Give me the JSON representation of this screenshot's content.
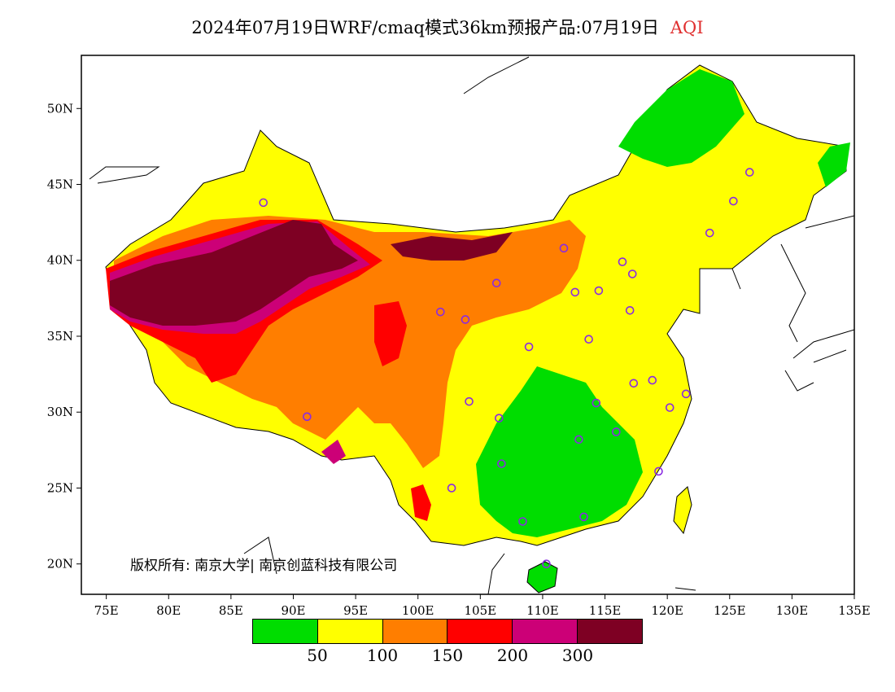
{
  "title": {
    "main": "2024年07月19日WRF/cmaq模式36km预报产品:07月19日",
    "variable": "AQI",
    "variable_color": "#e03030"
  },
  "axes": {
    "lon_ticks": [
      "75E",
      "80E",
      "85E",
      "90E",
      "95E",
      "100E",
      "105E",
      "110E",
      "115E",
      "120E",
      "125E",
      "130E",
      "135E"
    ],
    "lat_ticks": [
      "20N",
      "25N",
      "30N",
      "35N",
      "40N",
      "45N",
      "50N"
    ],
    "lon_range": [
      73,
      135
    ],
    "lat_range": [
      18,
      53.5
    ]
  },
  "copyright": "版权所有: 南京大学| 南京创蓝科技有限公司",
  "legend": {
    "colors": [
      "#00dd00",
      "#ffff00",
      "#ff7e00",
      "#ff0000",
      "#cc0077",
      "#7e0023"
    ],
    "labels": [
      "50",
      "100",
      "150",
      "200",
      "300"
    ]
  },
  "stations": [
    {
      "lon": 87.6,
      "lat": 43.8
    },
    {
      "lon": 91.1,
      "lat": 29.7
    },
    {
      "lon": 101.8,
      "lat": 36.6
    },
    {
      "lon": 103.8,
      "lat": 36.1
    },
    {
      "lon": 106.3,
      "lat": 38.5
    },
    {
      "lon": 111.7,
      "lat": 40.8
    },
    {
      "lon": 112.6,
      "lat": 37.9
    },
    {
      "lon": 114.5,
      "lat": 38.0
    },
    {
      "lon": 116.4,
      "lat": 39.9
    },
    {
      "lon": 117.2,
      "lat": 39.1
    },
    {
      "lon": 117.0,
      "lat": 36.7
    },
    {
      "lon": 113.7,
      "lat": 34.8
    },
    {
      "lon": 108.9,
      "lat": 34.3
    },
    {
      "lon": 104.1,
      "lat": 30.7
    },
    {
      "lon": 106.5,
      "lat": 29.6
    },
    {
      "lon": 106.7,
      "lat": 26.6
    },
    {
      "lon": 102.7,
      "lat": 25.0
    },
    {
      "lon": 108.4,
      "lat": 22.8
    },
    {
      "lon": 113.3,
      "lat": 23.1
    },
    {
      "lon": 110.3,
      "lat": 20.0
    },
    {
      "lon": 112.9,
      "lat": 28.2
    },
    {
      "lon": 114.3,
      "lat": 30.6
    },
    {
      "lon": 115.9,
      "lat": 28.7
    },
    {
      "lon": 117.3,
      "lat": 31.9
    },
    {
      "lon": 118.8,
      "lat": 32.1
    },
    {
      "lon": 120.2,
      "lat": 30.3
    },
    {
      "lon": 121.5,
      "lat": 31.2
    },
    {
      "lon": 119.3,
      "lat": 26.1
    },
    {
      "lon": 123.4,
      "lat": 41.8
    },
    {
      "lon": 125.3,
      "lat": 43.9
    },
    {
      "lon": 126.6,
      "lat": 45.8
    }
  ]
}
